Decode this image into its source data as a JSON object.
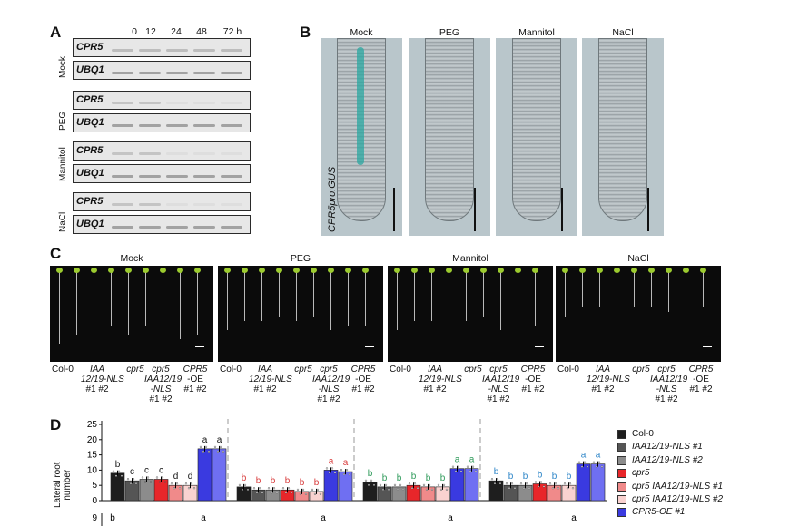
{
  "panels": {
    "a": {
      "label": "A",
      "timepoints": [
        "0",
        "12",
        "24",
        "48",
        "72 h"
      ],
      "conditions": [
        "Mock",
        "PEG",
        "Mannitol",
        "NaCl"
      ],
      "genes": [
        "CPR5",
        "UBQ1"
      ]
    },
    "b": {
      "label": "B",
      "conditions": [
        "Mock",
        "PEG",
        "Mannitol",
        "NaCl"
      ],
      "construct": "CPR5pro:GUS"
    },
    "c": {
      "label": "C",
      "conditions": [
        "Mock",
        "PEG",
        "Mannitol",
        "NaCl"
      ],
      "genotypes": [
        [
          "Col-0"
        ],
        [
          "IAA",
          "12/19-NLS",
          "#1  #2"
        ],
        [
          "cpr5"
        ],
        [
          "cpr5",
          "IAA12/19",
          "-NLS",
          "#1  #2"
        ],
        [
          "CPR5",
          "-OE",
          "#1  #2"
        ]
      ]
    },
    "d": {
      "label": "D",
      "ylabel": "Lateral root number",
      "ylabel_lines": [
        "Lateral root",
        "number"
      ],
      "yticks": [
        "0",
        "5",
        "10",
        "15",
        "20",
        "25"
      ],
      "lower_tick": "9",
      "lower_tick_row_labels": [
        "b",
        "a",
        "a",
        "a",
        "a"
      ],
      "legend": [
        {
          "label": "Col-0",
          "color": "#1e1e1e"
        },
        {
          "label": "IAA12/19-NLS #1",
          "color": "#555555"
        },
        {
          "label": "IAA12/19-NLS #2",
          "color": "#8c8c8c"
        },
        {
          "label": "cpr5",
          "color": "#e8262a"
        },
        {
          "label": "cpr5 IAA12/19-NLS #1",
          "color": "#f08a8a"
        },
        {
          "label": "cpr5 IAA12/19-NLS #2",
          "color": "#f9d2d0"
        },
        {
          "label": "CPR5-OE #1",
          "color": "#3a3ae0"
        }
      ]
    }
  },
  "chart_data": {
    "type": "bar",
    "ylabel": "Lateral root number",
    "ylim": [
      0,
      25
    ],
    "groups": [
      "Mock",
      "PEG",
      "Mannitol",
      "NaCl"
    ],
    "series_names": [
      "Col-0",
      "IAA12/19-NLS #1",
      "IAA12/19-NLS #2",
      "cpr5",
      "cpr5 IAA12/19-NLS #1",
      "cpr5 IAA12/19-NLS #2",
      "CPR5-OE #1",
      "CPR5-OE #2"
    ],
    "colors": [
      "#1e1e1e",
      "#555555",
      "#8c8c8c",
      "#e8262a",
      "#f08a8a",
      "#f9d2d0",
      "#3a3ae0",
      "#6f6ff2"
    ],
    "values": [
      [
        9,
        6.5,
        7,
        7,
        5,
        5,
        17,
        17
      ],
      [
        4.5,
        3.5,
        3.5,
        3.5,
        3,
        3,
        10,
        9.5
      ],
      [
        6,
        4.5,
        4.5,
        5,
        4.5,
        4.5,
        10.5,
        10.5
      ],
      [
        6.5,
        5,
        5,
        5.5,
        5,
        5,
        12,
        12
      ]
    ],
    "letters": [
      [
        "b",
        "c",
        "c",
        "c",
        "d",
        "d",
        "a",
        "a"
      ],
      [
        "b",
        "b",
        "b",
        "b",
        "b",
        "b",
        "a",
        "a"
      ],
      [
        "b",
        "b",
        "b",
        "b",
        "b",
        "b",
        "a",
        "a"
      ],
      [
        "b",
        "b",
        "b",
        "b",
        "b",
        "b",
        "a",
        "a"
      ]
    ]
  }
}
